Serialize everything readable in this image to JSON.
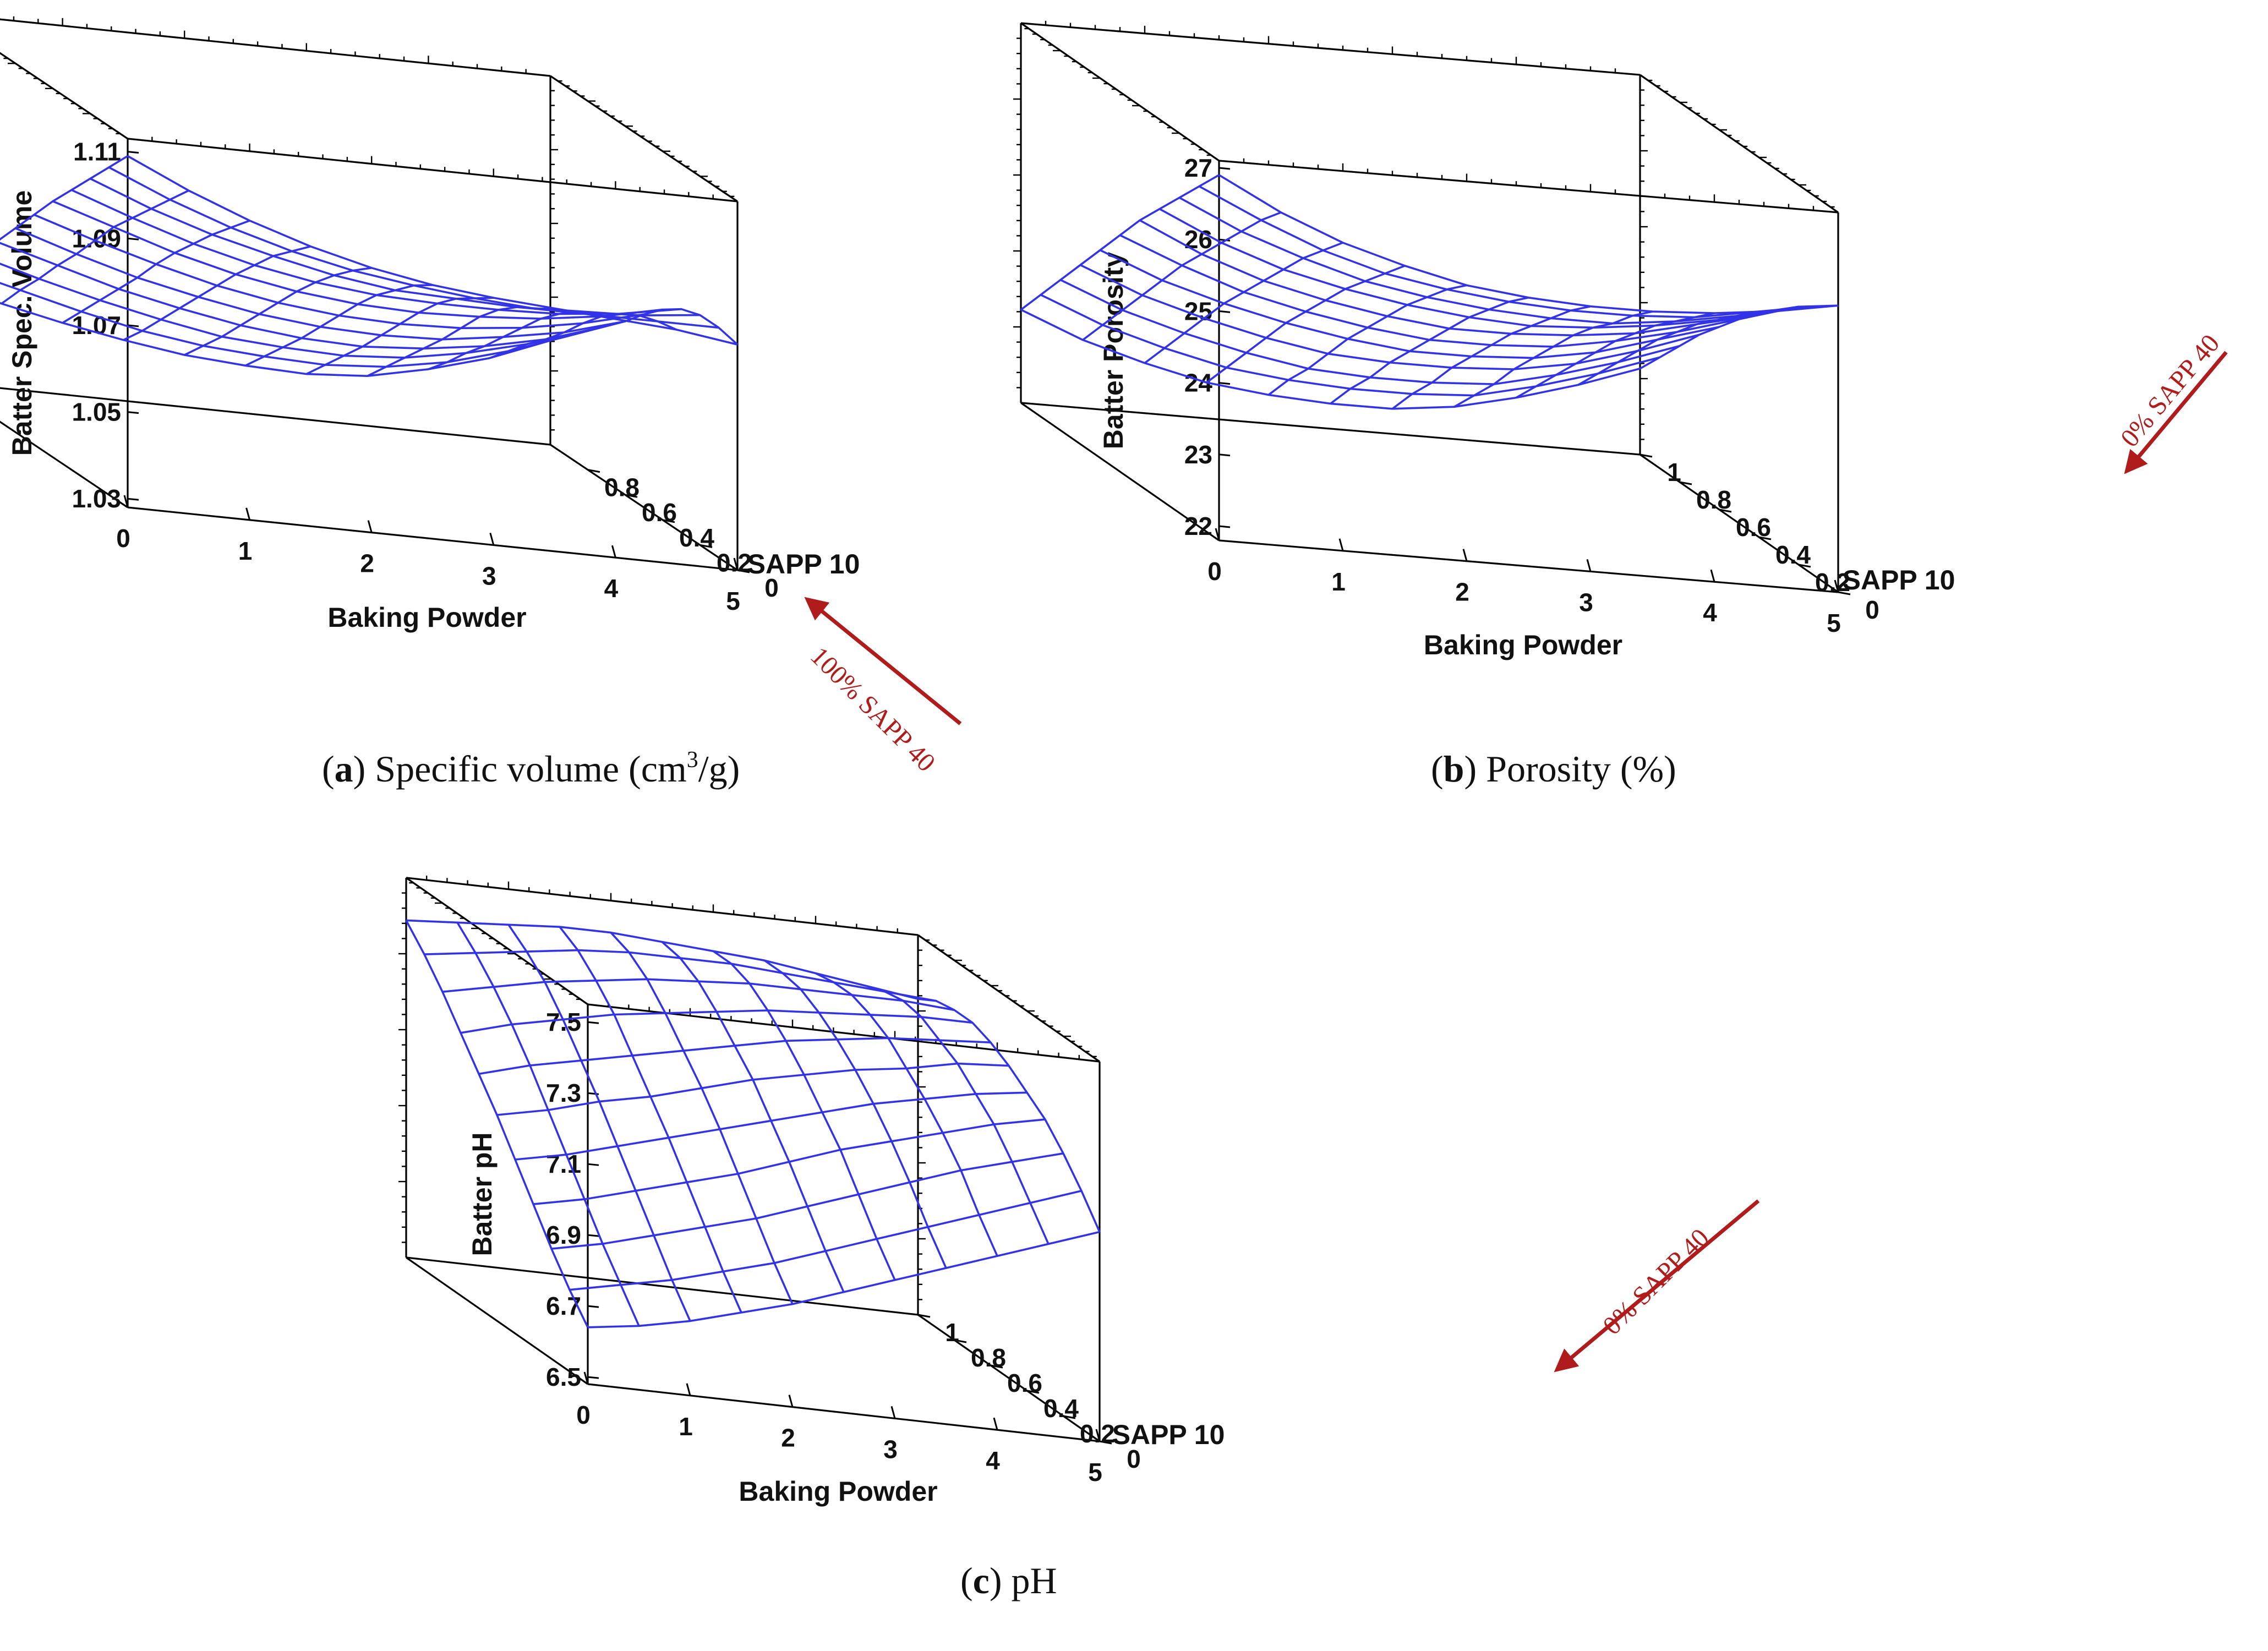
{
  "colors": {
    "surface": "#3232e6",
    "annotation": "#b01c1c",
    "box": "#000000"
  },
  "chart_data": [
    {
      "id": "a",
      "type": "surface",
      "caption_letter": "a",
      "caption_text": ") Specific volume (cm",
      "caption_sup": "3",
      "caption_tail": "/g)",
      "xlabel": "Baking Powder",
      "ylabel": "SAPP 10",
      "zlabel": "Batter Spec. Volume",
      "x_ticks": [
        "0",
        "1",
        "2",
        "3",
        "4",
        "5"
      ],
      "y_ticks": [
        "0",
        "0.2",
        "0.4",
        "0.6",
        "0.8"
      ],
      "z_ticks": [
        "1.03",
        "1.05",
        "1.07",
        "1.09",
        "1.11"
      ],
      "xlim": [
        0,
        5
      ],
      "ylim": [
        0,
        1
      ],
      "zlim": [
        1.028,
        1.113
      ],
      "grid_x": [
        0,
        0.5,
        1,
        1.5,
        2,
        2.5,
        3,
        3.5,
        4,
        4.5,
        5
      ],
      "grid_y": [
        0,
        0.1,
        0.2,
        0.3,
        0.4,
        0.5,
        0.6,
        0.7,
        0.8,
        0.9,
        1
      ],
      "z_values": [
        [
          1.109,
          1.1025,
          1.097,
          1.0925,
          1.089,
          1.0865,
          1.085,
          1.084,
          1.083,
          1.082,
          1.08
        ],
        [
          1.1035,
          1.0975,
          1.0925,
          1.0885,
          1.0855,
          1.0835,
          1.082,
          1.081,
          1.081,
          1.081,
          1.081
        ],
        [
          1.098,
          1.0925,
          1.088,
          1.0845,
          1.0815,
          1.0795,
          1.079,
          1.0785,
          1.079,
          1.0795,
          1.081
        ],
        [
          1.0925,
          1.0875,
          1.083,
          1.0795,
          1.077,
          1.0755,
          1.075,
          1.075,
          1.0755,
          1.077,
          1.0795
        ],
        [
          1.087,
          1.0825,
          1.078,
          1.0745,
          1.072,
          1.0705,
          1.07,
          1.0705,
          1.0715,
          1.0735,
          1.0765
        ],
        [
          1.081,
          1.0765,
          1.0725,
          1.069,
          1.0665,
          1.065,
          1.0645,
          1.065,
          1.0665,
          1.069,
          1.0725
        ],
        [
          1.075,
          1.0705,
          1.0665,
          1.0635,
          1.061,
          1.0595,
          1.059,
          1.0595,
          1.0615,
          1.064,
          1.068
        ],
        [
          1.069,
          1.065,
          1.061,
          1.058,
          1.0555,
          1.054,
          1.0535,
          1.0545,
          1.0565,
          1.0595,
          1.064
        ],
        [
          1.063,
          1.059,
          1.0555,
          1.0525,
          1.05,
          1.049,
          1.0485,
          1.0495,
          1.052,
          1.0555,
          1.06
        ],
        [
          1.057,
          1.0535,
          1.05,
          1.047,
          1.045,
          1.044,
          1.0435,
          1.0445,
          1.047,
          1.051,
          1.056
        ],
        [
          1.051,
          1.0475,
          1.0445,
          1.042,
          1.04,
          1.039,
          1.0385,
          1.0395,
          1.0425,
          1.0465,
          1.052
        ]
      ],
      "annotation": "100% SAPP 40"
    },
    {
      "id": "b",
      "type": "surface",
      "caption_letter": "b",
      "caption_text": ") Porosity (%)",
      "xlabel": "Baking Powder",
      "ylabel": "SAPP 10",
      "zlabel": "Batter Porosity",
      "x_ticks": [
        "0",
        "1",
        "2",
        "3",
        "4",
        "5"
      ],
      "y_ticks": [
        "0",
        "0.2",
        "0.4",
        "0.6",
        "0.8",
        "1"
      ],
      "z_ticks": [
        "22",
        "23",
        "24",
        "25",
        "26",
        "27"
      ],
      "xlim": [
        0,
        5
      ],
      "ylim": [
        0,
        1
      ],
      "zlim": [
        21.8,
        27.1
      ],
      "grid_x": [
        0,
        0.5,
        1,
        1.5,
        2,
        2.5,
        3,
        3.5,
        4,
        4.5,
        5
      ],
      "grid_y": [
        0,
        0.1,
        0.2,
        0.3,
        0.4,
        0.5,
        0.6,
        0.7,
        0.8,
        0.9,
        1
      ],
      "z_values": [
        [
          26.9,
          26.45,
          26.1,
          25.85,
          25.65,
          25.55,
          25.5,
          25.5,
          25.55,
          25.65,
          25.8
        ],
        [
          26.55,
          26.15,
          25.8,
          25.55,
          25.4,
          25.3,
          25.25,
          25.25,
          25.3,
          25.45,
          25.6
        ],
        [
          26.2,
          25.8,
          25.5,
          25.25,
          25.1,
          25.0,
          24.95,
          24.95,
          25.05,
          25.2,
          25.4
        ],
        [
          25.85,
          25.45,
          25.15,
          24.95,
          24.8,
          24.7,
          24.65,
          24.7,
          24.8,
          24.95,
          25.15
        ],
        [
          25.5,
          25.1,
          24.8,
          24.6,
          24.45,
          24.35,
          24.35,
          24.4,
          24.5,
          24.7,
          24.9
        ],
        [
          25.1,
          24.75,
          24.45,
          24.25,
          24.1,
          24.0,
          24.0,
          24.05,
          24.2,
          24.4,
          24.65
        ],
        [
          24.7,
          24.35,
          24.1,
          23.9,
          23.75,
          23.65,
          23.65,
          23.7,
          23.85,
          24.1,
          24.35
        ],
        [
          24.3,
          23.95,
          23.7,
          23.5,
          23.35,
          23.3,
          23.3,
          23.35,
          23.5,
          23.75,
          24.05
        ],
        [
          23.9,
          23.55,
          23.3,
          23.1,
          22.95,
          22.9,
          22.9,
          22.95,
          23.15,
          23.4,
          23.7
        ],
        [
          23.5,
          23.15,
          22.9,
          22.7,
          22.6,
          22.55,
          22.55,
          22.6,
          22.8,
          23.05,
          23.35
        ],
        [
          23.1,
          22.75,
          22.5,
          22.3,
          22.2,
          22.15,
          22.15,
          22.25,
          22.45,
          22.7,
          23.0
        ]
      ],
      "annotation": "0% SAPP 40"
    },
    {
      "id": "c",
      "type": "surface",
      "caption_letter": "c",
      "caption_text": ") pH",
      "xlabel": "Baking Powder",
      "ylabel": "SAPP 10",
      "zlabel": "Batter pH",
      "x_ticks": [
        "0",
        "1",
        "2",
        "3",
        "4",
        "5"
      ],
      "y_ticks": [
        "0",
        "0.2",
        "0.4",
        "0.6",
        "0.8",
        "1"
      ],
      "z_ticks": [
        "6.5",
        "6.7",
        "6.9",
        "7.1",
        "7.3",
        "7.5"
      ],
      "xlim": [
        0,
        5
      ],
      "ylim": [
        0,
        1
      ],
      "zlim": [
        6.48,
        7.55
      ],
      "grid_x": [
        0,
        0.5,
        1,
        1.5,
        2,
        2.5,
        3,
        3.5,
        4,
        4.5,
        5
      ],
      "grid_y": [
        0,
        0.1,
        0.2,
        0.3,
        0.4,
        0.5,
        0.6,
        0.7,
        0.8,
        0.9,
        1
      ],
      "z_values": [
        [
          6.64,
          6.66,
          6.69,
          6.73,
          6.77,
          6.82,
          6.87,
          6.92,
          6.97,
          7.02,
          7.07
        ],
        [
          6.71,
          6.74,
          6.77,
          6.81,
          6.85,
          6.9,
          6.95,
          7.0,
          7.05,
          7.1,
          7.15
        ],
        [
          6.79,
          6.82,
          6.86,
          6.9,
          6.94,
          6.99,
          7.04,
          7.09,
          7.14,
          7.18,
          7.22
        ],
        [
          6.88,
          6.91,
          6.95,
          6.99,
          7.03,
          7.08,
          7.13,
          7.17,
          7.21,
          7.25,
          7.28
        ],
        [
          6.97,
          7.0,
          7.04,
          7.08,
          7.12,
          7.16,
          7.2,
          7.24,
          7.27,
          7.3,
          7.32
        ],
        [
          7.06,
          7.09,
          7.13,
          7.16,
          7.2,
          7.24,
          7.27,
          7.3,
          7.32,
          7.35,
          7.36
        ],
        [
          7.14,
          7.18,
          7.21,
          7.24,
          7.27,
          7.3,
          7.33,
          7.35,
          7.37,
          7.38,
          7.39
        ],
        [
          7.22,
          7.26,
          7.29,
          7.32,
          7.34,
          7.36,
          7.38,
          7.39,
          7.4,
          7.41,
          7.41
        ],
        [
          7.3,
          7.33,
          7.36,
          7.38,
          7.4,
          7.41,
          7.42,
          7.42,
          7.42,
          7.42,
          7.41
        ],
        [
          7.37,
          7.39,
          7.41,
          7.43,
          7.44,
          7.44,
          7.44,
          7.43,
          7.42,
          7.41,
          7.4
        ],
        [
          7.43,
          7.44,
          7.45,
          7.46,
          7.46,
          7.45,
          7.44,
          7.43,
          7.41,
          7.39,
          7.37
        ]
      ],
      "annotation": "0% SAPP 40"
    }
  ]
}
